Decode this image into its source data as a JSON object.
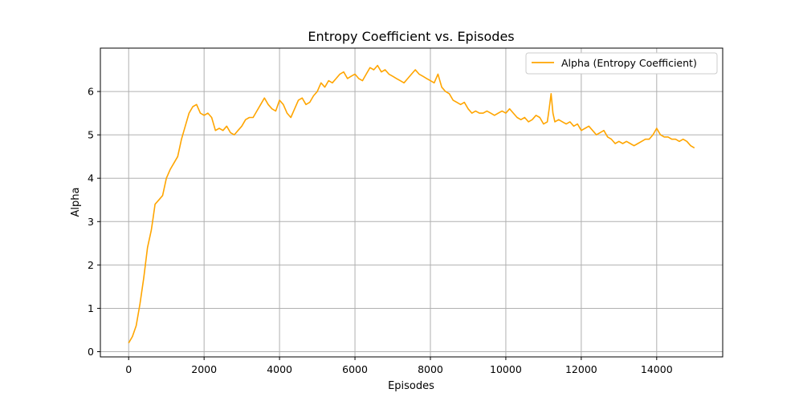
{
  "chart_data": {
    "type": "line",
    "title": "Entropy Coefficient vs. Episodes",
    "xlabel": "Episodes",
    "ylabel": "Alpha",
    "xlim": [
      -750,
      15750
    ],
    "ylim": [
      -0.12,
      7.0
    ],
    "xticks": [
      0,
      2000,
      4000,
      6000,
      8000,
      10000,
      12000,
      14000
    ],
    "xtick_labels": [
      "0",
      "2000",
      "4000",
      "6000",
      "8000",
      "10000",
      "12000",
      "14000"
    ],
    "yticks": [
      0,
      1,
      2,
      3,
      4,
      5,
      6
    ],
    "ytick_labels": [
      "0",
      "1",
      "2",
      "3",
      "4",
      "5",
      "6"
    ],
    "grid": true,
    "legend_position": "top-right",
    "series": [
      {
        "name": "Alpha (Entropy Coefficient)",
        "color": "#ffa500",
        "x": [
          0,
          100,
          200,
          300,
          400,
          500,
          600,
          650,
          700,
          800,
          900,
          1000,
          1100,
          1200,
          1300,
          1400,
          1500,
          1600,
          1700,
          1800,
          1900,
          2000,
          2100,
          2200,
          2300,
          2400,
          2500,
          2600,
          2700,
          2800,
          2900,
          3000,
          3100,
          3200,
          3300,
          3400,
          3500,
          3600,
          3700,
          3800,
          3900,
          4000,
          4100,
          4200,
          4300,
          4400,
          4500,
          4600,
          4700,
          4800,
          4900,
          5000,
          5100,
          5200,
          5300,
          5400,
          5500,
          5600,
          5700,
          5800,
          5900,
          6000,
          6100,
          6200,
          6300,
          6400,
          6500,
          6600,
          6700,
          6800,
          6900,
          7000,
          7100,
          7200,
          7300,
          7400,
          7500,
          7600,
          7700,
          7800,
          7900,
          8000,
          8100,
          8200,
          8300,
          8400,
          8500,
          8600,
          8700,
          8800,
          8900,
          9000,
          9100,
          9200,
          9300,
          9400,
          9500,
          9600,
          9700,
          9800,
          9900,
          10000,
          10100,
          10200,
          10300,
          10400,
          10500,
          10600,
          10700,
          10800,
          10900,
          11000,
          11100,
          11150,
          11200,
          11250,
          11300,
          11400,
          11500,
          11600,
          11700,
          11800,
          11900,
          12000,
          12100,
          12200,
          12300,
          12400,
          12500,
          12600,
          12700,
          12800,
          12900,
          13000,
          13100,
          13200,
          13300,
          13400,
          13500,
          13600,
          13700,
          13800,
          13900,
          14000,
          14100,
          14200,
          14300,
          14400,
          14500,
          14600,
          14700,
          14800,
          14900,
          15000
        ],
        "values": [
          0.2,
          0.35,
          0.6,
          1.1,
          1.7,
          2.4,
          2.8,
          3.1,
          3.4,
          3.5,
          3.6,
          4.0,
          4.2,
          4.35,
          4.5,
          4.9,
          5.2,
          5.5,
          5.65,
          5.7,
          5.5,
          5.45,
          5.5,
          5.4,
          5.1,
          5.15,
          5.1,
          5.2,
          5.05,
          5.0,
          5.1,
          5.2,
          5.35,
          5.4,
          5.4,
          5.55,
          5.7,
          5.85,
          5.7,
          5.6,
          5.55,
          5.8,
          5.7,
          5.5,
          5.4,
          5.6,
          5.8,
          5.85,
          5.7,
          5.75,
          5.9,
          6.0,
          6.2,
          6.1,
          6.25,
          6.2,
          6.3,
          6.4,
          6.45,
          6.3,
          6.35,
          6.4,
          6.3,
          6.25,
          6.4,
          6.55,
          6.5,
          6.6,
          6.45,
          6.5,
          6.4,
          6.35,
          6.3,
          6.25,
          6.2,
          6.3,
          6.4,
          6.5,
          6.4,
          6.35,
          6.3,
          6.25,
          6.2,
          6.4,
          6.1,
          6.0,
          5.95,
          5.8,
          5.75,
          5.7,
          5.75,
          5.6,
          5.5,
          5.55,
          5.5,
          5.5,
          5.55,
          5.5,
          5.45,
          5.5,
          5.55,
          5.5,
          5.6,
          5.5,
          5.4,
          5.35,
          5.4,
          5.3,
          5.35,
          5.45,
          5.4,
          5.25,
          5.3,
          5.6,
          5.95,
          5.5,
          5.3,
          5.35,
          5.3,
          5.25,
          5.3,
          5.2,
          5.25,
          5.1,
          5.15,
          5.2,
          5.1,
          5.0,
          5.05,
          5.1,
          4.95,
          4.9,
          4.8,
          4.85,
          4.8,
          4.85,
          4.8,
          4.75,
          4.8,
          4.85,
          4.9,
          4.9,
          5.0,
          5.15,
          5.0,
          4.95,
          4.95,
          4.9,
          4.9,
          4.85,
          4.9,
          4.85,
          4.75,
          4.7
        ]
      }
    ]
  }
}
